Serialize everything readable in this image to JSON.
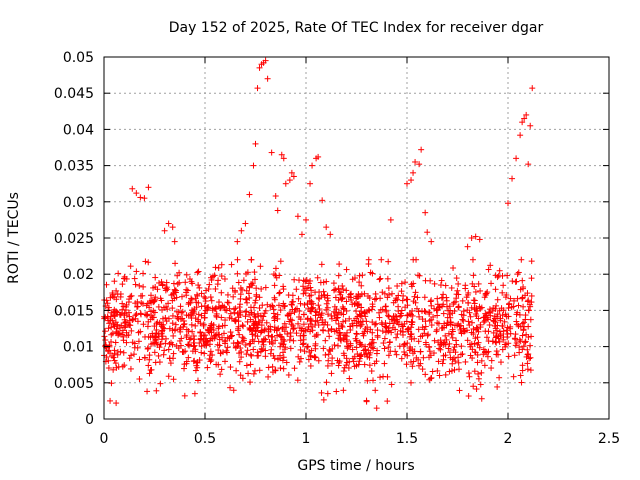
{
  "chart_data": {
    "type": "scatter",
    "title": "Day 152 of 2025, Rate Of TEC Index for receiver dgar",
    "xlabel": "GPS time / hours",
    "ylabel": "ROTI / TECUs",
    "xlim": [
      0,
      2.5
    ],
    "ylim": [
      0,
      0.05
    ],
    "x_ticks": [
      "0",
      "0.5",
      "1",
      "1.5",
      "2",
      "2.5"
    ],
    "y_ticks": [
      "0",
      "0.005",
      "0.01",
      "0.015",
      "0.02",
      "0.025",
      "0.03",
      "0.035",
      "0.04",
      "0.045",
      "0.05"
    ],
    "grid": true,
    "marker": "+",
    "marker_color": "#ff0000",
    "point_summary": "Dense scatter of ROTI samples from 0 to 2.12 hours, mostly between 0.002 and 0.022 TECU/s, with isolated excursions.",
    "series": [
      {
        "name": "ROTI",
        "density": {
          "x_range": [
            0.0,
            2.12
          ],
          "y_range": [
            0.002,
            0.022
          ],
          "count": 1800
        },
        "points": [
          [
            0.14,
            0.0318
          ],
          [
            0.16,
            0.0312
          ],
          [
            0.18,
            0.0306
          ],
          [
            0.2,
            0.0305
          ],
          [
            0.22,
            0.032
          ],
          [
            0.3,
            0.026
          ],
          [
            0.32,
            0.027
          ],
          [
            0.34,
            0.0265
          ],
          [
            0.35,
            0.0245
          ],
          [
            0.66,
            0.0245
          ],
          [
            0.68,
            0.026
          ],
          [
            0.7,
            0.027
          ],
          [
            0.72,
            0.031
          ],
          [
            0.74,
            0.035
          ],
          [
            0.75,
            0.038
          ],
          [
            0.76,
            0.0457
          ],
          [
            0.77,
            0.0485
          ],
          [
            0.78,
            0.049
          ],
          [
            0.79,
            0.0492
          ],
          [
            0.8,
            0.0495
          ],
          [
            0.81,
            0.047
          ],
          [
            0.83,
            0.0368
          ],
          [
            0.85,
            0.0308
          ],
          [
            0.86,
            0.0288
          ],
          [
            0.88,
            0.0365
          ],
          [
            0.89,
            0.036
          ],
          [
            0.9,
            0.0325
          ],
          [
            0.92,
            0.033
          ],
          [
            0.93,
            0.034
          ],
          [
            0.94,
            0.0335
          ],
          [
            0.96,
            0.028
          ],
          [
            0.98,
            0.0255
          ],
          [
            1.0,
            0.0275
          ],
          [
            1.02,
            0.0325
          ],
          [
            1.03,
            0.035
          ],
          [
            1.05,
            0.036
          ],
          [
            1.06,
            0.0362
          ],
          [
            1.08,
            0.0302
          ],
          [
            1.1,
            0.0265
          ],
          [
            1.12,
            0.0255
          ],
          [
            1.42,
            0.0275
          ],
          [
            1.5,
            0.0325
          ],
          [
            1.52,
            0.033
          ],
          [
            1.53,
            0.034
          ],
          [
            1.54,
            0.0355
          ],
          [
            1.56,
            0.0352
          ],
          [
            1.57,
            0.0372
          ],
          [
            1.59,
            0.0285
          ],
          [
            1.6,
            0.0258
          ],
          [
            1.62,
            0.0245
          ],
          [
            1.8,
            0.0238
          ],
          [
            1.82,
            0.025
          ],
          [
            1.84,
            0.0252
          ],
          [
            1.86,
            0.0248
          ],
          [
            2.0,
            0.0298
          ],
          [
            2.02,
            0.0332
          ],
          [
            2.04,
            0.036
          ],
          [
            2.06,
            0.0392
          ],
          [
            2.07,
            0.041
          ],
          [
            2.08,
            0.0415
          ],
          [
            2.09,
            0.042
          ],
          [
            2.1,
            0.0352
          ],
          [
            2.11,
            0.0405
          ],
          [
            2.12,
            0.0457
          ],
          [
            0.03,
            0.0025
          ],
          [
            0.06,
            0.0022
          ],
          [
            1.35,
            0.0015
          ],
          [
            1.87,
            0.0028
          ],
          [
            0.4,
            0.0032
          ],
          [
            0.45,
            0.0035
          ],
          [
            1.15,
            0.0038
          ],
          [
            1.3,
            0.0024
          ]
        ]
      }
    ]
  }
}
